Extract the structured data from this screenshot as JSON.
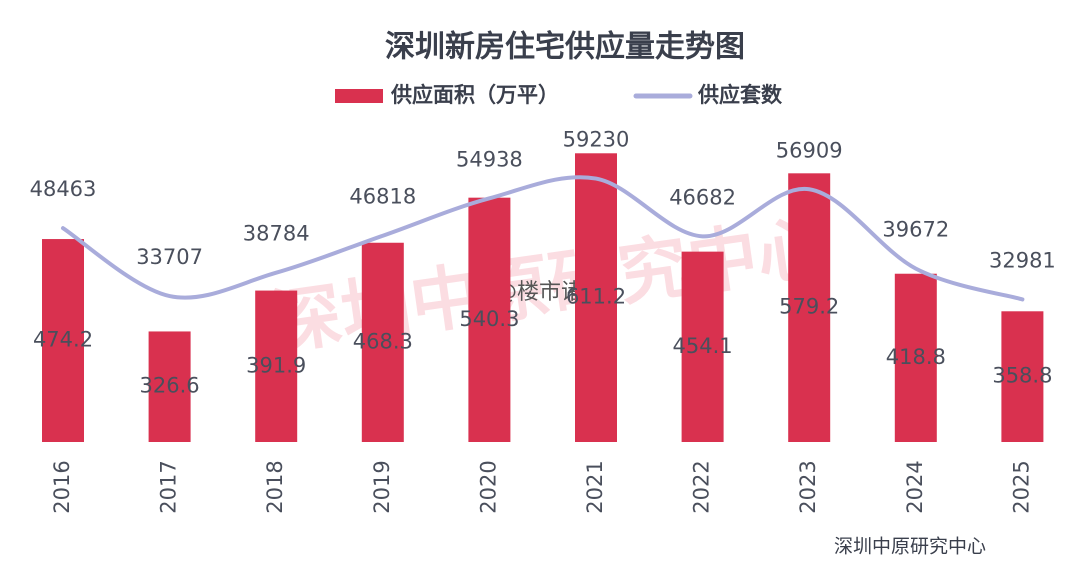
{
  "chart_data": {
    "type": "bar_line",
    "title": "深圳新房住宅供应量走势图",
    "categories": [
      "2016",
      "2017",
      "2018",
      "2019",
      "2020",
      "2021",
      "2022",
      "2023",
      "2024",
      "2025"
    ],
    "series": [
      {
        "name": "供应面积（万平）",
        "type": "bar",
        "color": "#d9314f",
        "values": [
          474.2,
          326.6,
          391.9,
          468.3,
          540.3,
          611.2,
          454.1,
          579.2,
          418.8,
          358.8
        ]
      },
      {
        "name": "供应套数",
        "type": "line",
        "axis": "y2",
        "color": "#a9acdb",
        "values": [
          48463,
          33707,
          38784,
          46818,
          54938,
          59230,
          46682,
          56909,
          39672,
          32981
        ]
      }
    ],
    "ylim": [
      150,
      650
    ],
    "y2lim": [
      2000,
      70000
    ],
    "source": "深圳中原研究中心",
    "watermark": "@楼市诸葛",
    "watermark_large": "深圳中原研究中心"
  }
}
